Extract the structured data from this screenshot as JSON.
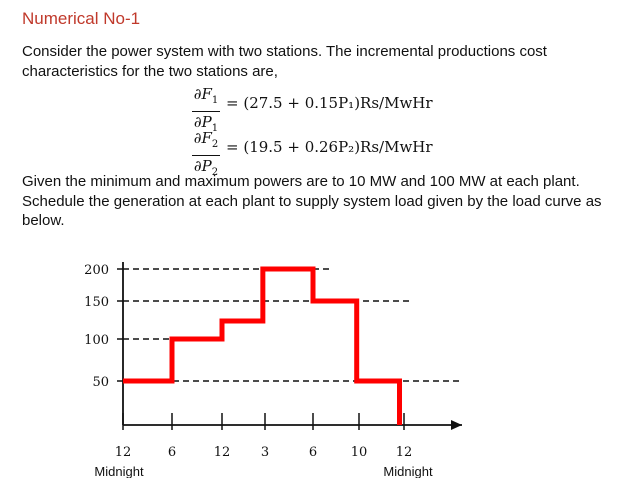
{
  "slide": {
    "title": "Numerical No-1",
    "intro": "Consider the power system with two stations. The incremental productions cost characteristics for the two stations are,",
    "equations": [
      {
        "num": "∂F",
        "num_sub": "1",
        "den": "∂P",
        "den_sub": "1",
        "rhs": "= (27.5 + 0.15P₁)Rs/MwHr"
      },
      {
        "num": "∂F",
        "num_sub": "2",
        "den": "∂P",
        "den_sub": "2",
        "rhs": "= (19.5 + 0.26P₂)Rs/MwHr"
      }
    ],
    "paragraph": "Given the minimum and maximum powers are to 10 MW and 100 MW at each plant. Schedule the generation at each plant to supply system load given by the load curve as below."
  },
  "chart_data": {
    "type": "line",
    "step": true,
    "x": [
      "12",
      "6",
      "12",
      "3",
      "6",
      "10",
      "12"
    ],
    "series": [
      {
        "segments": [
          {
            "from": 0,
            "to": 1,
            "y": 50
          },
          {
            "from": 1,
            "to": 2,
            "y": 100
          },
          {
            "from": 2,
            "to": 2.95,
            "y": 120
          },
          {
            "from": 2.95,
            "to": 4,
            "y": 200
          },
          {
            "from": 4,
            "to": 4.95,
            "y": 150
          },
          {
            "from": 4.95,
            "to": 5.9,
            "y": 50
          }
        ],
        "end_drop_to": 0
      }
    ],
    "y_ticks": [
      50,
      100,
      150,
      200
    ],
    "xlabel_left": "Midnight",
    "xlabel_right": "Midnight",
    "colors": {
      "load": "#ff0000",
      "axis": "#111111"
    }
  }
}
